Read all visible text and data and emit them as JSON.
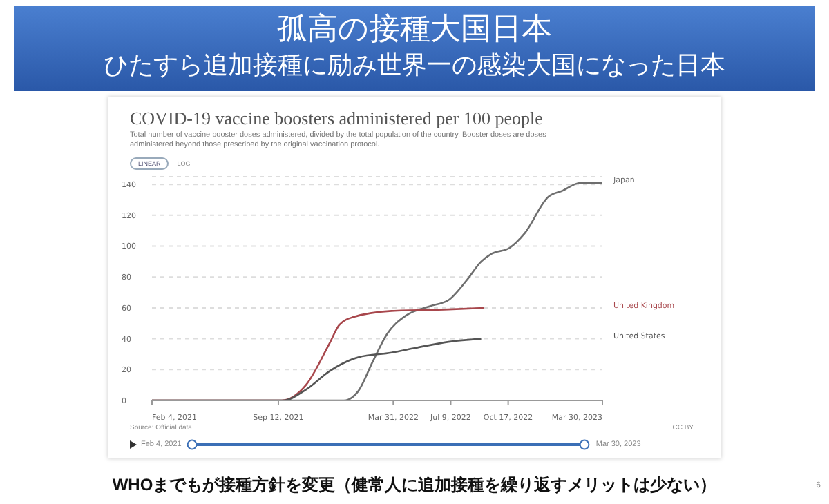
{
  "chart_data": {
    "type": "line",
    "title": "孤高の接種大国日本",
    "subtitle": "ひたすら追加接種に励み世界一の感染大国になった日本",
    "annotations": [
      "COVID-19 vaccine boosters administered per 100 people",
      "Total number of vaccine booster doses administered, divided by the total population of the country. Booster doses are doses administered beyond those prescribed by the original vaccination protocol.",
      "LINEAR",
      "LOG",
      "Source: Official data",
      "CC BY",
      "Feb 4, 2021",
      "Mar 30, 2023",
      "WHOまでもが接種方針を変更（健常人に追加接種を繰り返すメリットは少ない）",
      "6"
    ],
    "xlim": [
      "2021-02-04",
      "2023-03-30"
    ],
    "xticks": [
      {
        "value": "2021-02-04",
        "label": "Feb 4, 2021"
      },
      {
        "value": "2021-09-12",
        "label": "Sep 12, 2021"
      },
      {
        "value": "2022-03-31",
        "label": "Mar 31, 2022"
      },
      {
        "value": "2022-07-09",
        "label": "Jul 9, 2022"
      },
      {
        "value": "2022-10-17",
        "label": "Oct 17, 2022"
      },
      {
        "value": "2023-03-30",
        "label": "Mar 30, 2023"
      }
    ],
    "ylim": [
      0,
      145
    ],
    "yticks": [
      0,
      20,
      40,
      60,
      80,
      100,
      120,
      140
    ],
    "grid": "y",
    "marker": "none",
    "line_style": "solid",
    "series": [
      {
        "name": "Japan",
        "color": "#6e6e6e",
        "x": [
          "2021-02-04",
          "2022-01-04",
          "2022-01-29",
          "2022-02-23",
          "2022-03-20",
          "2022-04-22",
          "2022-06-02",
          "2022-07-05",
          "2022-08-06",
          "2022-08-31",
          "2022-09-18",
          "2022-10-20",
          "2022-11-14",
          "2022-12-26",
          "2023-01-20",
          "2023-02-19",
          "2023-03-30"
        ],
        "values": [
          0,
          0,
          6,
          25,
          43,
          55,
          61,
          65,
          78,
          90,
          95,
          99,
          108,
          132,
          136,
          141,
          141
        ]
      },
      {
        "name": "United Kingdom",
        "color": "#a8474c",
        "x": [
          "2021-02-04",
          "2021-09-18",
          "2021-10-30",
          "2021-12-10",
          "2021-12-27",
          "2022-01-20",
          "2022-03-28",
          "2022-07-05",
          "2022-09-05"
        ],
        "values": [
          0,
          0,
          10,
          37,
          49,
          54,
          58,
          59,
          60
        ]
      },
      {
        "name": "United States",
        "color": "#555555",
        "x": [
          "2021-02-04",
          "2021-09-20",
          "2021-10-30",
          "2021-12-10",
          "2022-01-29",
          "2022-03-28",
          "2022-05-08",
          "2022-07-05",
          "2022-08-31"
        ],
        "values": [
          0,
          0,
          7,
          19,
          28,
          31,
          34,
          38,
          40
        ]
      }
    ]
  }
}
